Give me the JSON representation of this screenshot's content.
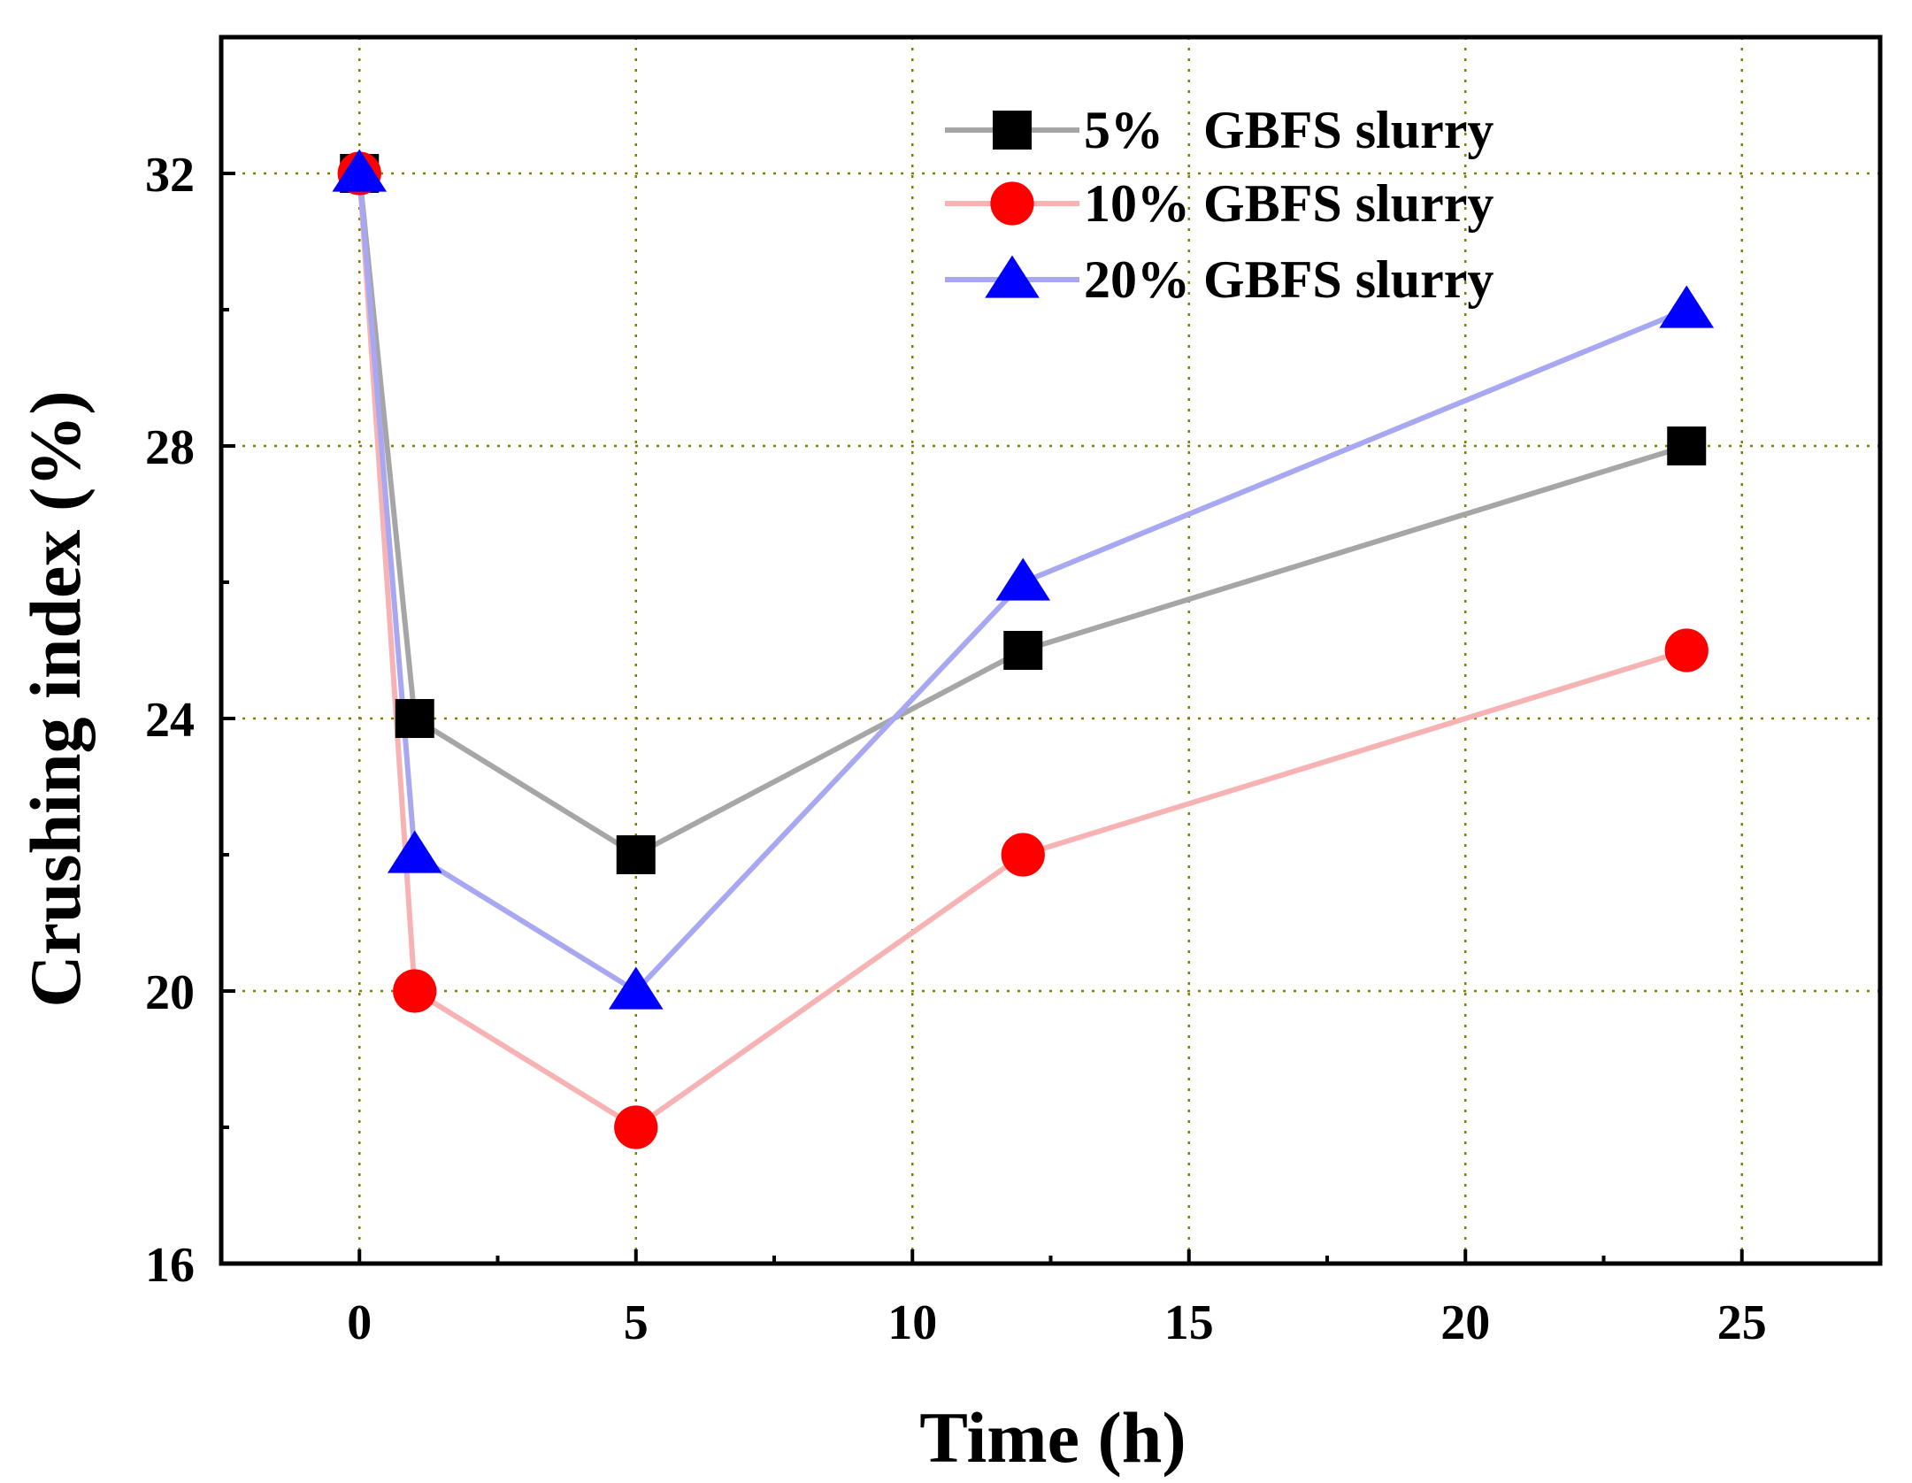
{
  "chart_data": {
    "type": "line",
    "title": "",
    "xlabel": "Time (h)",
    "ylabel": "Crushing index (%)",
    "xlim": [
      -2.5,
      27.5
    ],
    "ylim": [
      16,
      34
    ],
    "x_ticks": [
      0,
      5,
      10,
      15,
      20,
      25
    ],
    "y_ticks": [
      16,
      20,
      24,
      28,
      32
    ],
    "x_minor_ticks": [
      2.5,
      7.5,
      12.5,
      17.5,
      22.5
    ],
    "y_minor_ticks": [
      18,
      22,
      26,
      30
    ],
    "grid": true,
    "legend_position": "top-right",
    "x": [
      0,
      1,
      5,
      12,
      24
    ],
    "series": [
      {
        "name": "5%   GBFS slurry",
        "marker": "square",
        "marker_color": "#000000",
        "line_color": "#a6a6a6",
        "values": [
          32,
          24,
          22,
          25,
          28
        ]
      },
      {
        "name": "10% GBFS slurry",
        "marker": "circle",
        "marker_color": "#ff0000",
        "line_color": "#f7b3b3",
        "values": [
          32,
          20,
          18,
          22,
          25
        ]
      },
      {
        "name": "20% GBFS slurry",
        "marker": "triangle",
        "marker_color": "#0000ff",
        "line_color": "#a8a8f2",
        "values": [
          32,
          22,
          20,
          26,
          30
        ]
      }
    ],
    "colors": {
      "grid": "#808000",
      "axis": "#000000"
    }
  }
}
